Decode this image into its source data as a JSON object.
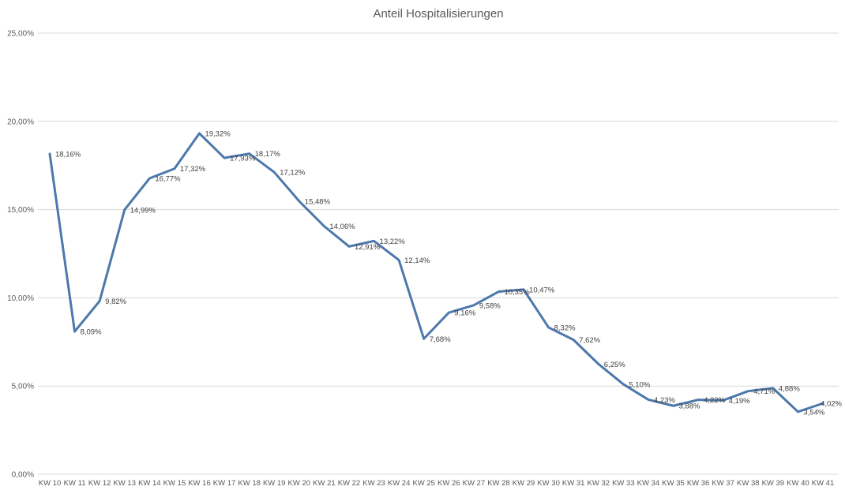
{
  "chart_data": {
    "type": "line",
    "title": "Anteil Hospitalisierungen",
    "categories": [
      "KW 10",
      "KW 11",
      "KW 12",
      "KW 13",
      "KW 14",
      "KW 15",
      "KW 16",
      "KW 17",
      "KW 18",
      "KW 19",
      "KW 20",
      "KW 21",
      "KW 22",
      "KW 23",
      "KW 24",
      "KW 25",
      "KW 26",
      "KW 27",
      "KW 28",
      "KW 29",
      "KW 30",
      "KW 31",
      "KW 32",
      "KW 33",
      "KW 34",
      "KW 35",
      "KW 36",
      "KW 37",
      "KW 38",
      "KW 39",
      "KW 40",
      "KW 41"
    ],
    "series": [
      {
        "name": "Anteil Hospitalisierungen",
        "values": [
          18.16,
          8.09,
          9.82,
          14.99,
          16.77,
          17.32,
          19.32,
          17.93,
          18.17,
          17.12,
          15.48,
          14.06,
          12.91,
          13.22,
          12.14,
          7.68,
          9.16,
          9.58,
          10.35,
          10.47,
          8.32,
          7.62,
          6.25,
          5.1,
          4.23,
          3.88,
          4.22,
          4.19,
          4.71,
          4.88,
          3.54,
          4.02
        ],
        "labels": [
          "18,16%",
          "8,09%",
          "9,82%",
          "14,99%",
          "16,77%",
          "17,32%",
          "19,32%",
          "17,93%",
          "18,17%",
          "17,12%",
          "15,48%",
          "14,06%",
          "12,91%",
          "13,22%",
          "12,14%",
          "7,68%",
          "9,16%",
          "9,58%",
          "10,35%",
          "10,47%",
          "8,32%",
          "7,62%",
          "6,25%",
          "5,10%",
          "4,23%",
          "3,88%",
          "4,22%",
          "4,19%",
          "4,71%",
          "4,88%",
          "3,54%",
          "4,02%"
        ],
        "color": "#4C78AB"
      }
    ],
    "xlabel": "",
    "ylabel": "",
    "ylim": [
      0,
      25
    ],
    "yticks": [
      {
        "value": 0,
        "label": "0,00%"
      },
      {
        "value": 5,
        "label": "5,00%"
      },
      {
        "value": 10,
        "label": "10,00%"
      },
      {
        "value": 15,
        "label": "15,00%"
      },
      {
        "value": 20,
        "label": "20,00%"
      },
      {
        "value": 25,
        "label": "25,00%"
      }
    ],
    "grid": true,
    "legend": "none",
    "data_labels": true,
    "colors": {
      "grid": "#D9D9D9",
      "title": "#595959",
      "tick": "#595959",
      "data_label": "#404040",
      "background": "#FFFFFF"
    }
  }
}
